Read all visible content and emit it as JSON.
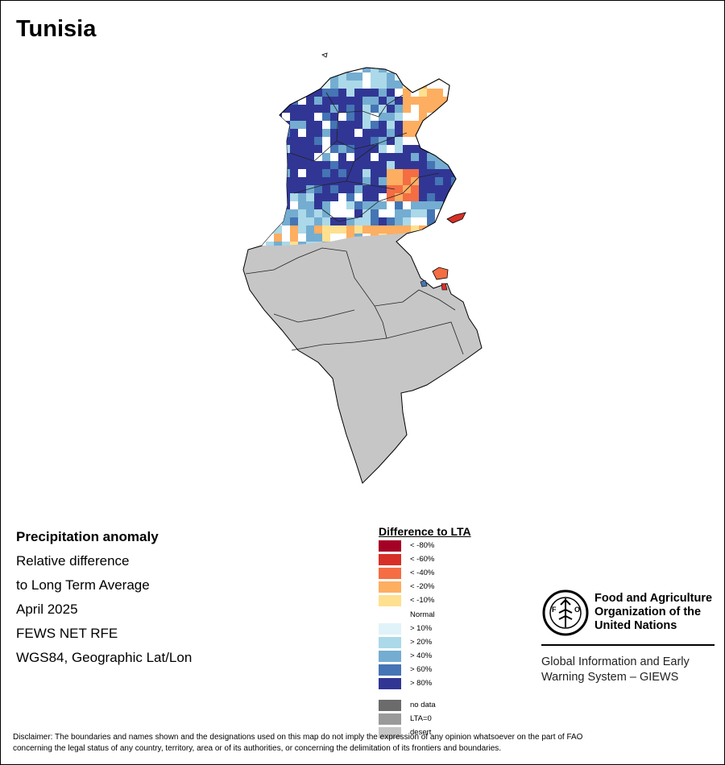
{
  "title": "Tunisia",
  "info": {
    "heading": "Precipitation anomaly",
    "line1": "Relative difference",
    "line2": "to Long Term Average",
    "period": "April 2025",
    "source": "FEWS NET RFE",
    "projection": "WGS84, Geographic Lat/Lon"
  },
  "legend": {
    "title": "Difference to LTA",
    "items": [
      {
        "label": "< -80%",
        "color": "#a50026"
      },
      {
        "label": "< -60%",
        "color": "#d73027"
      },
      {
        "label": "< -40%",
        "color": "#f46d43"
      },
      {
        "label": "< -20%",
        "color": "#fdae61"
      },
      {
        "label": "< -10%",
        "color": "#fee090"
      },
      {
        "label": "Normal",
        "color": "#ffffff"
      },
      {
        "label": "> 10%",
        "color": "#e0f3f8"
      },
      {
        "label": "> 20%",
        "color": "#abd9e9"
      },
      {
        "label": "> 40%",
        "color": "#74add1"
      },
      {
        "label": "> 60%",
        "color": "#4575b4"
      },
      {
        "label": "> 80%",
        "color": "#313695"
      },
      {
        "label": "no data",
        "color": "#6b6b6b"
      },
      {
        "label": "LTA=0",
        "color": "#9a9a9a"
      },
      {
        "label": "desert",
        "color": "#c6c6c6"
      }
    ]
  },
  "organization": {
    "name_line1": "Food and Agriculture",
    "name_line2": "Organization of the",
    "name_line3": "United Nations",
    "system_line1": "Global Information and Early",
    "system_line2": "Warning System – GIEWS",
    "logo_text": "FIAT PANIS"
  },
  "disclaimer_line1": "Disclaimer: The boundaries and names shown and the designations used on this map do not imply the expression of any opinion whatsoever on the part of FAO",
  "disclaimer_line2": "concerning the legal status of any country, territory, area or of its authorities, or concerning the delimitation of its frontiers and boundaries."
}
